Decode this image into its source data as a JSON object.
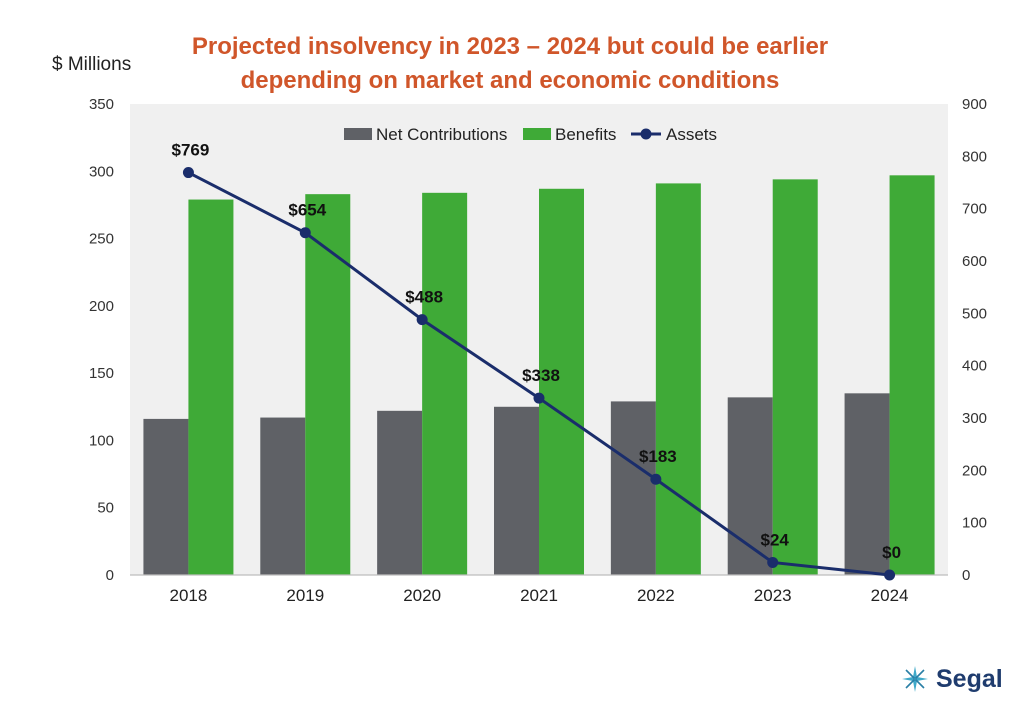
{
  "title_line1": "Projected insolvency in 2023 – 2024 but could be earlier",
  "title_line2": "depending on market and economic conditions",
  "unit_label": "$ Millions",
  "brand": "Segal",
  "colors": {
    "net_contributions": "#5f6166",
    "benefits": "#3faa37",
    "assets": "#1a2d6b",
    "title": "#d0562a",
    "plot_bg": "#f0f0f0"
  },
  "chart_data": {
    "type": "bar",
    "categories": [
      "2018",
      "2019",
      "2020",
      "2021",
      "2022",
      "2023",
      "2024"
    ],
    "series": [
      {
        "name": "Net Contributions",
        "type": "bar",
        "axis": "left",
        "values": [
          116,
          117,
          122,
          125,
          129,
          132,
          135
        ]
      },
      {
        "name": "Benefits",
        "type": "bar",
        "axis": "left",
        "values": [
          279,
          283,
          284,
          287,
          291,
          294,
          297
        ]
      },
      {
        "name": "Assets",
        "type": "line",
        "axis": "right",
        "values": [
          769,
          654,
          488,
          338,
          183,
          24,
          0
        ],
        "labels": [
          "$769",
          "$654",
          "$488",
          "$338",
          "$183",
          "$24",
          "$0"
        ]
      }
    ],
    "y_left": {
      "lim": [
        0,
        350
      ],
      "ticks": [
        0,
        50,
        100,
        150,
        200,
        250,
        300,
        350
      ]
    },
    "y_right": {
      "lim": [
        0,
        900
      ],
      "ticks": [
        0,
        100,
        200,
        300,
        400,
        500,
        600,
        700,
        800,
        900
      ]
    },
    "legend": "top-center",
    "grid": false
  }
}
